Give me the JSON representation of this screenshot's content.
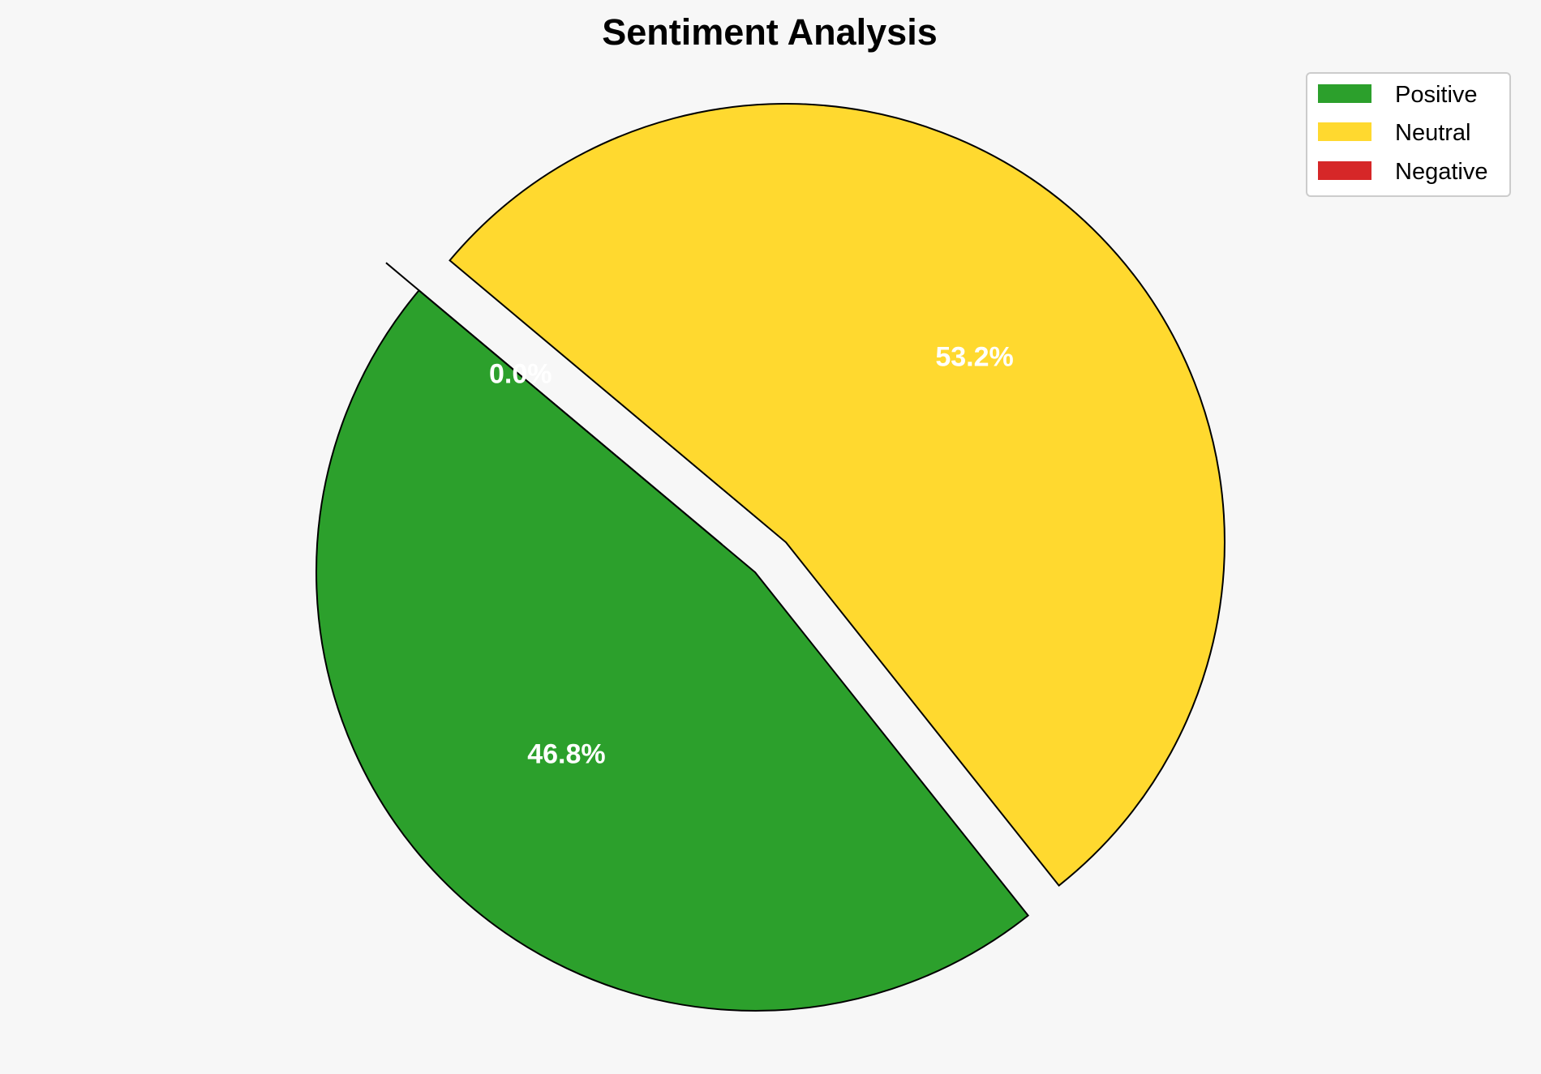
{
  "chart_data": {
    "type": "pie",
    "title": "Sentiment Analysis",
    "categories": [
      "Positive",
      "Neutral",
      "Negative"
    ],
    "values": [
      46.8,
      53.2,
      0.0
    ],
    "labels": [
      "46.8%",
      "53.2%",
      "0.0%"
    ],
    "colors": [
      "#2ca02c",
      "#ffd92f",
      "#d62728"
    ],
    "start_angle_deg": 140,
    "exploded": [
      false,
      true,
      true
    ],
    "legend": {
      "placement": "top-right",
      "entries": [
        "Positive",
        "Neutral",
        "Negative"
      ]
    },
    "background": "#f7f7f7"
  }
}
